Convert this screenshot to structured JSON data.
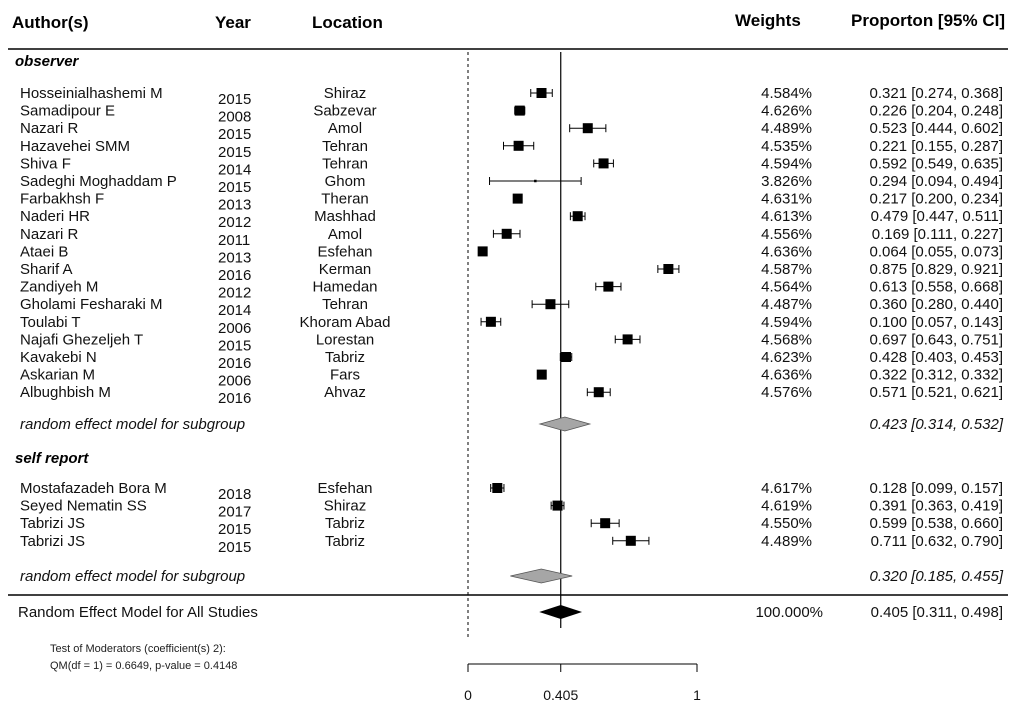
{
  "headers": {
    "author": "Author(s)",
    "year": "Year",
    "location": "Location",
    "weights": "Weights",
    "proportion": "Proporton [95% CI]"
  },
  "chart_data": {
    "type": "forest",
    "xlim": [
      0,
      1
    ],
    "ticks": [
      0,
      0.405,
      1
    ],
    "tick_labels": [
      "0",
      "0.405",
      "1"
    ],
    "reference_value": 0.405,
    "null_line_value": 0,
    "groups": [
      {
        "title": "observer",
        "studies": [
          {
            "author": "Hosseinialhashemi M",
            "year": "2015",
            "location": "Shiraz",
            "weight": "4.584%",
            "ci_text": "0.321 [0.274, 0.368]",
            "est": 0.321,
            "lo": 0.274,
            "hi": 0.368
          },
          {
            "author": "Samadipour E",
            "year": "2008",
            "location": "Sabzevar",
            "weight": "4.626%",
            "ci_text": "0.226 [0.204, 0.248]",
            "est": 0.226,
            "lo": 0.204,
            "hi": 0.248
          },
          {
            "author": "Nazari R",
            "year": "2015",
            "location": "Amol",
            "weight": "4.489%",
            "ci_text": "0.523 [0.444, 0.602]",
            "est": 0.523,
            "lo": 0.444,
            "hi": 0.602
          },
          {
            "author": "Hazavehei SMM",
            "year": "2015",
            "location": "Tehran",
            "weight": "4.535%",
            "ci_text": "0.221 [0.155, 0.287]",
            "est": 0.221,
            "lo": 0.155,
            "hi": 0.287
          },
          {
            "author": "Shiva F",
            "year": "2014",
            "location": "Tehran",
            "weight": "4.594%",
            "ci_text": "0.592 [0.549, 0.635]",
            "est": 0.592,
            "lo": 0.549,
            "hi": 0.635
          },
          {
            "author": "Sadeghi Moghaddam P",
            "year": "2015",
            "location": "Ghom",
            "weight": "3.826%",
            "ci_text": "0.294 [0.094, 0.494]",
            "est": 0.294,
            "lo": 0.094,
            "hi": 0.494
          },
          {
            "author": "Farbakhsh F",
            "year": "2013",
            "location": "Theran",
            "weight": "4.631%",
            "ci_text": "0.217 [0.200, 0.234]",
            "est": 0.217,
            "lo": 0.2,
            "hi": 0.234
          },
          {
            "author": "Naderi HR",
            "year": "2012",
            "location": "Mashhad",
            "weight": "4.613%",
            "ci_text": "0.479 [0.447, 0.511]",
            "est": 0.479,
            "lo": 0.447,
            "hi": 0.511
          },
          {
            "author": "Nazari R",
            "year": "2011",
            "location": "Amol",
            "weight": "4.556%",
            "ci_text": "0.169 [0.111, 0.227]",
            "est": 0.169,
            "lo": 0.111,
            "hi": 0.227
          },
          {
            "author": "Ataei B",
            "year": "2013",
            "location": "Esfehan",
            "weight": "4.636%",
            "ci_text": "0.064 [0.055, 0.073]",
            "est": 0.064,
            "lo": 0.055,
            "hi": 0.073
          },
          {
            "author": "Sharif A",
            "year": "2016",
            "location": "Kerman",
            "weight": "4.587%",
            "ci_text": "0.875 [0.829, 0.921]",
            "est": 0.875,
            "lo": 0.829,
            "hi": 0.921
          },
          {
            "author": "Zandiyeh M",
            "year": "2012",
            "location": "Hamedan",
            "weight": "4.564%",
            "ci_text": "0.613 [0.558, 0.668]",
            "est": 0.613,
            "lo": 0.558,
            "hi": 0.668
          },
          {
            "author": "Gholami Fesharaki M",
            "year": "2014",
            "location": "Tehran",
            "weight": "4.487%",
            "ci_text": "0.360 [0.280, 0.440]",
            "est": 0.36,
            "lo": 0.28,
            "hi": 0.44
          },
          {
            "author": "Toulabi T",
            "year": "2006",
            "location": "Khoram Abad",
            "weight": "4.594%",
            "ci_text": "0.100 [0.057, 0.143]",
            "est": 0.1,
            "lo": 0.057,
            "hi": 0.143
          },
          {
            "author": "Najafi Ghezeljeh T",
            "year": "2015",
            "location": "Lorestan",
            "weight": "4.568%",
            "ci_text": "0.697 [0.643, 0.751]",
            "est": 0.697,
            "lo": 0.643,
            "hi": 0.751
          },
          {
            "author": "Kavakebi N",
            "year": "2016",
            "location": "Tabriz",
            "weight": "4.623%",
            "ci_text": "0.428 [0.403, 0.453]",
            "est": 0.428,
            "lo": 0.403,
            "hi": 0.453
          },
          {
            "author": "Askarian M",
            "year": "2006",
            "location": "Fars",
            "weight": "4.636%",
            "ci_text": "0.322 [0.312, 0.332]",
            "est": 0.322,
            "lo": 0.312,
            "hi": 0.332
          },
          {
            "author": "Albughbish M",
            "year": "2016",
            "location": "Ahvaz",
            "weight": "4.576%",
            "ci_text": "0.571 [0.521, 0.621]",
            "est": 0.571,
            "lo": 0.521,
            "hi": 0.621
          }
        ],
        "summary": {
          "label": "random effect model for subgroup",
          "ci_text": "0.423 [0.314, 0.532]",
          "est": 0.423,
          "lo": 0.314,
          "hi": 0.532
        }
      },
      {
        "title": "self report",
        "studies": [
          {
            "author": "Mostafazadeh Bora M",
            "year": "2018",
            "location": "Esfehan",
            "weight": "4.617%",
            "ci_text": "0.128 [0.099, 0.157]",
            "est": 0.128,
            "lo": 0.099,
            "hi": 0.157
          },
          {
            "author": "Seyed Nematin SS",
            "year": "2017",
            "location": "Shiraz",
            "weight": "4.619%",
            "ci_text": "0.391 [0.363, 0.419]",
            "est": 0.391,
            "lo": 0.363,
            "hi": 0.419
          },
          {
            "author": "Tabrizi JS",
            "year": "2015",
            "location": "Tabriz",
            "weight": "4.550%",
            "ci_text": "0.599 [0.538, 0.660]",
            "est": 0.599,
            "lo": 0.538,
            "hi": 0.66
          },
          {
            "author": "Tabrizi JS",
            "year": "2015",
            "location": "Tabriz",
            "weight": "4.489%",
            "ci_text": "0.711 [0.632, 0.790]",
            "est": 0.711,
            "lo": 0.632,
            "hi": 0.79
          }
        ],
        "summary": {
          "label": "random effect model for subgroup",
          "ci_text": "0.320 [0.185, 0.455]",
          "est": 0.32,
          "lo": 0.185,
          "hi": 0.455
        }
      }
    ],
    "overall": {
      "label": "Random Effect Model for All Studies",
      "weight": "100.000%",
      "ci_text": "0.405 [0.311, 0.498]",
      "est": 0.405,
      "lo": 0.311,
      "hi": 0.498
    },
    "moderator_test": {
      "line1": "Test of Moderators (coefficient(s) 2):",
      "line2": "QM(df = 1) = 0.6649, p-value = 0.4148"
    },
    "colors": {
      "points": "#000000",
      "subgroup_diamond": "#a6a6a6",
      "overall_diamond": "#000000"
    }
  }
}
